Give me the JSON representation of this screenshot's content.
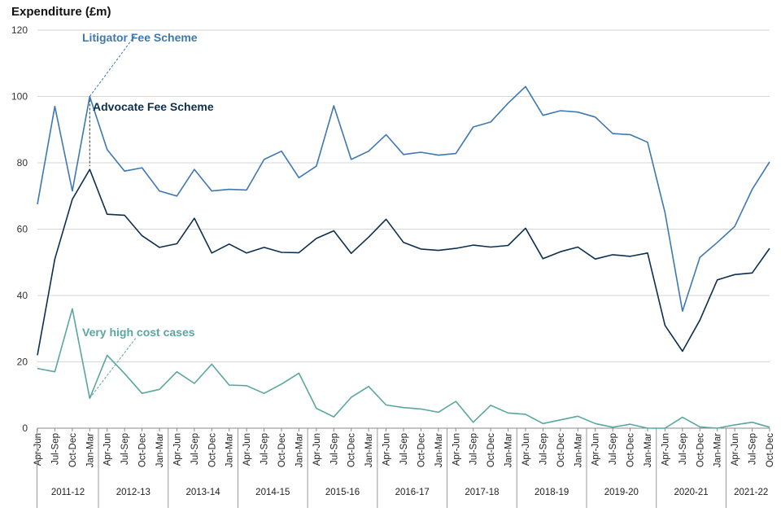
{
  "chart_data": {
    "type": "line",
    "ylabel": "Expenditure (£m)",
    "ylim": [
      0,
      120
    ],
    "yticks": [
      0,
      20,
      40,
      60,
      80,
      100,
      120
    ],
    "grid": true,
    "x": [
      "Apr-Jun",
      "Jul-Sep",
      "Oct-Dec",
      "Jan-Mar",
      "Apr-Jun",
      "Jul-Sep",
      "Oct-Dec",
      "Jan-Mar",
      "Apr-Jun",
      "Jul-Sep",
      "Oct-Dec",
      "Jan-Mar",
      "Apr-Jun",
      "Jul-Sep",
      "Oct-Dec",
      "Jan-Mar",
      "Apr-Jun",
      "Jul-Sep",
      "Oct-Dec",
      "Jan-Mar",
      "Apr-Jun",
      "Jul-Sep",
      "Oct-Dec",
      "Jan-Mar",
      "Apr-Jun",
      "Jul-Sep",
      "Oct-Dec",
      "Jan-Mar",
      "Apr-Jun",
      "Jul-Sep",
      "Oct-Dec",
      "Jan-Mar",
      "Apr-Jun",
      "Jul-Sep",
      "Oct-Dec",
      "Jan-Mar",
      "Apr-Jun",
      "Jul-Sep",
      "Oct-Dec",
      "Jan-Mar",
      "Apr-Jun",
      "Jul-Sep",
      "Oct-Dec"
    ],
    "financial_years": [
      {
        "label": "2011-12",
        "quarters": 4
      },
      {
        "label": "2012-13",
        "quarters": 4
      },
      {
        "label": "2013-14",
        "quarters": 4
      },
      {
        "label": "2014-15",
        "quarters": 4
      },
      {
        "label": "2015-16",
        "quarters": 4
      },
      {
        "label": "2016-17",
        "quarters": 4
      },
      {
        "label": "2017-18",
        "quarters": 4
      },
      {
        "label": "2018-19",
        "quarters": 4
      },
      {
        "label": "2019-20",
        "quarters": 4
      },
      {
        "label": "2020-21",
        "quarters": 4
      },
      {
        "label": "2021-22",
        "quarters": 3
      }
    ],
    "series": [
      {
        "name": "Litigator Fee Scheme",
        "color": "#3e78b2",
        "values": [
          67.5,
          97,
          71.5,
          100,
          84,
          77.5,
          78.5,
          71.5,
          70,
          78,
          71.5,
          72,
          71.8,
          81,
          83.5,
          75.5,
          79,
          97.2,
          81,
          83.5,
          88.5,
          82.5,
          83.2,
          82.3,
          82.8,
          90.8,
          92.3,
          98,
          103,
          94.3,
          95.7,
          95.3,
          93.8,
          88.8,
          88.5,
          86.2,
          65,
          35.3,
          51.5,
          56,
          60.8,
          72,
          80.3
        ]
      },
      {
        "name": "Advocate Fee Scheme",
        "color": "#0d2f4f",
        "values": [
          22,
          51,
          69,
          78,
          64.5,
          64.2,
          58,
          54.5,
          55.6,
          63.3,
          52.8,
          55.5,
          52.8,
          54.5,
          53,
          52.9,
          57.2,
          59.5,
          52.7,
          57.6,
          63,
          56,
          54,
          53.6,
          54.2,
          55.2,
          54.6,
          55.1,
          60.3,
          51.1,
          53.2,
          54.6,
          51,
          52.3,
          51.8,
          52.8,
          31,
          23.2,
          32.6,
          44.7,
          46.3,
          46.8,
          54.2
        ]
      },
      {
        "name": "Very high cost cases",
        "color": "#5aa6a0",
        "values": [
          18,
          17,
          36,
          9,
          22,
          16.5,
          10.5,
          11.7,
          17,
          13.5,
          19.3,
          13,
          12.8,
          10.5,
          13.3,
          16.6,
          6,
          3.4,
          9.3,
          12.6,
          7,
          6.2,
          5.8,
          4.8,
          8.1,
          1.8,
          6.9,
          4.6,
          4.2,
          1.4,
          2.5,
          3.6,
          1.4,
          0.3,
          1.2,
          0,
          0,
          3.3,
          0.4,
          0,
          1,
          1.8,
          0.3
        ]
      }
    ],
    "annotations": [
      {
        "text": "Litigator Fee Scheme",
        "series": 0
      },
      {
        "text": "Advocate Fee Scheme",
        "series": 1
      },
      {
        "text": "Very high cost cases",
        "series": 2
      }
    ]
  }
}
